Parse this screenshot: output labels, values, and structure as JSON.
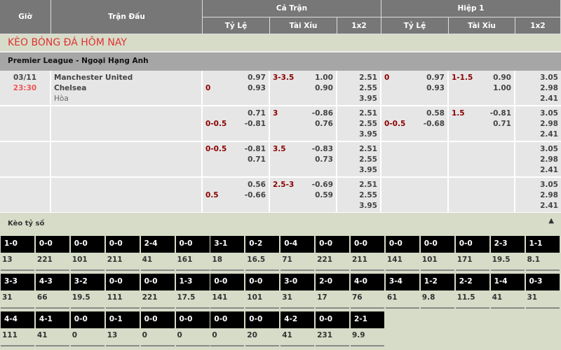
{
  "header": {
    "gio": "Giờ",
    "tran_dau": "Trận Đấu",
    "ca_tran": "Cả Trận",
    "hiep1": "Hiệp 1",
    "ty_le": "Tỷ Lệ",
    "tai_xiu": "Tài Xỉu",
    "x12": "1x2"
  },
  "title": "KÈO BÓNG ĐÁ HÔM NAY",
  "league": "Premier League - Ngoại Hạng Anh",
  "match": {
    "date": "03/11",
    "time": "23:30",
    "home": "Manchester United",
    "away": "Chelsea",
    "draw": "Hòa"
  },
  "rows": [
    {
      "ft_hdp": [
        [
          "",
          "0.97"
        ],
        [
          "0",
          "0.93"
        ]
      ],
      "ft_ou": [
        [
          "3-3.5",
          "1.00"
        ],
        [
          "",
          "0.90"
        ]
      ],
      "ft_1x2": [
        "2.51",
        "2.55",
        "3.95"
      ],
      "h1_hdp": [
        [
          "0",
          "0.97"
        ],
        [
          "",
          "0.93"
        ]
      ],
      "h1_ou": [
        [
          "1-1.5",
          "0.90"
        ],
        [
          "",
          "1.00"
        ]
      ],
      "h1_1x2": [
        "3.05",
        "2.98",
        "2.41"
      ]
    },
    {
      "ft_hdp": [
        [
          "",
          "0.71"
        ],
        [
          "0-0.5",
          "-0.81"
        ]
      ],
      "ft_ou": [
        [
          "3",
          "-0.86"
        ],
        [
          "",
          "0.76"
        ]
      ],
      "ft_1x2": [
        "2.51",
        "2.55",
        "3.95"
      ],
      "h1_hdp": [
        [
          "",
          "0.58"
        ],
        [
          "0-0.5",
          "-0.68"
        ]
      ],
      "h1_ou": [
        [
          "1.5",
          "-0.81"
        ],
        [
          "",
          "0.71"
        ]
      ],
      "h1_1x2": [
        "3.05",
        "2.98",
        "2.41"
      ]
    },
    {
      "ft_hdp": [
        [
          "0-0.5",
          "-0.81"
        ],
        [
          "",
          "0.71"
        ]
      ],
      "ft_ou": [
        [
          "3.5",
          "-0.83"
        ],
        [
          "",
          "0.73"
        ]
      ],
      "ft_1x2": [
        "2.51",
        "2.55",
        "3.95"
      ],
      "h1_hdp": [],
      "h1_ou": [],
      "h1_1x2": [
        "3.05",
        "2.98",
        "2.41"
      ]
    },
    {
      "ft_hdp": [
        [
          "",
          "0.56"
        ],
        [
          "0.5",
          "-0.66"
        ]
      ],
      "ft_ou": [
        [
          "2.5-3",
          "-0.69"
        ],
        [
          "",
          "0.59"
        ]
      ],
      "ft_1x2": [
        "2.51",
        "2.55",
        "3.95"
      ],
      "h1_hdp": [],
      "h1_ou": [],
      "h1_1x2": [
        "3.05",
        "2.98",
        "2.41"
      ]
    }
  ],
  "correct_score": {
    "label": "Kèo tỷ số",
    "collapse_icon": "triangle-up-icon",
    "items": [
      [
        "1-0",
        "13"
      ],
      [
        "0-0",
        "221"
      ],
      [
        "0-0",
        "101"
      ],
      [
        "0-0",
        "211"
      ],
      [
        "2-4",
        "41"
      ],
      [
        "0-0",
        "161"
      ],
      [
        "3-1",
        "18"
      ],
      [
        "0-2",
        "16.5"
      ],
      [
        "0-4",
        "71"
      ],
      [
        "0-0",
        "221"
      ],
      [
        "0-0",
        "211"
      ],
      [
        "0-0",
        "141"
      ],
      [
        "0-0",
        "101"
      ],
      [
        "0-0",
        "171"
      ],
      [
        "2-3",
        "19.5"
      ],
      [
        "1-1",
        "8.1"
      ],
      [
        "3-3",
        "31"
      ],
      [
        "4-3",
        "66"
      ],
      [
        "3-2",
        "19.5"
      ],
      [
        "0-0",
        "111"
      ],
      [
        "0-0",
        "221"
      ],
      [
        "1-3",
        "17.5"
      ],
      [
        "0-0",
        "141"
      ],
      [
        "0-0",
        "101"
      ],
      [
        "3-0",
        "31"
      ],
      [
        "2-0",
        "17"
      ],
      [
        "4-0",
        "76"
      ],
      [
        "3-4",
        "61"
      ],
      [
        "1-2",
        "9.8"
      ],
      [
        "2-2",
        "11.5"
      ],
      [
        "1-4",
        "41"
      ],
      [
        "0-3",
        "31"
      ],
      [
        "4-4",
        "111"
      ],
      [
        "4-1",
        "41"
      ],
      [
        "0-0",
        "0"
      ],
      [
        "0-1",
        "13"
      ],
      [
        "0-0",
        "0"
      ],
      [
        "0-0",
        "0"
      ],
      [
        "0-0",
        "0"
      ],
      [
        "0-0",
        "20"
      ],
      [
        "4-2",
        "41"
      ],
      [
        "0-0",
        "231"
      ],
      [
        "2-1",
        "9.9"
      ]
    ]
  }
}
